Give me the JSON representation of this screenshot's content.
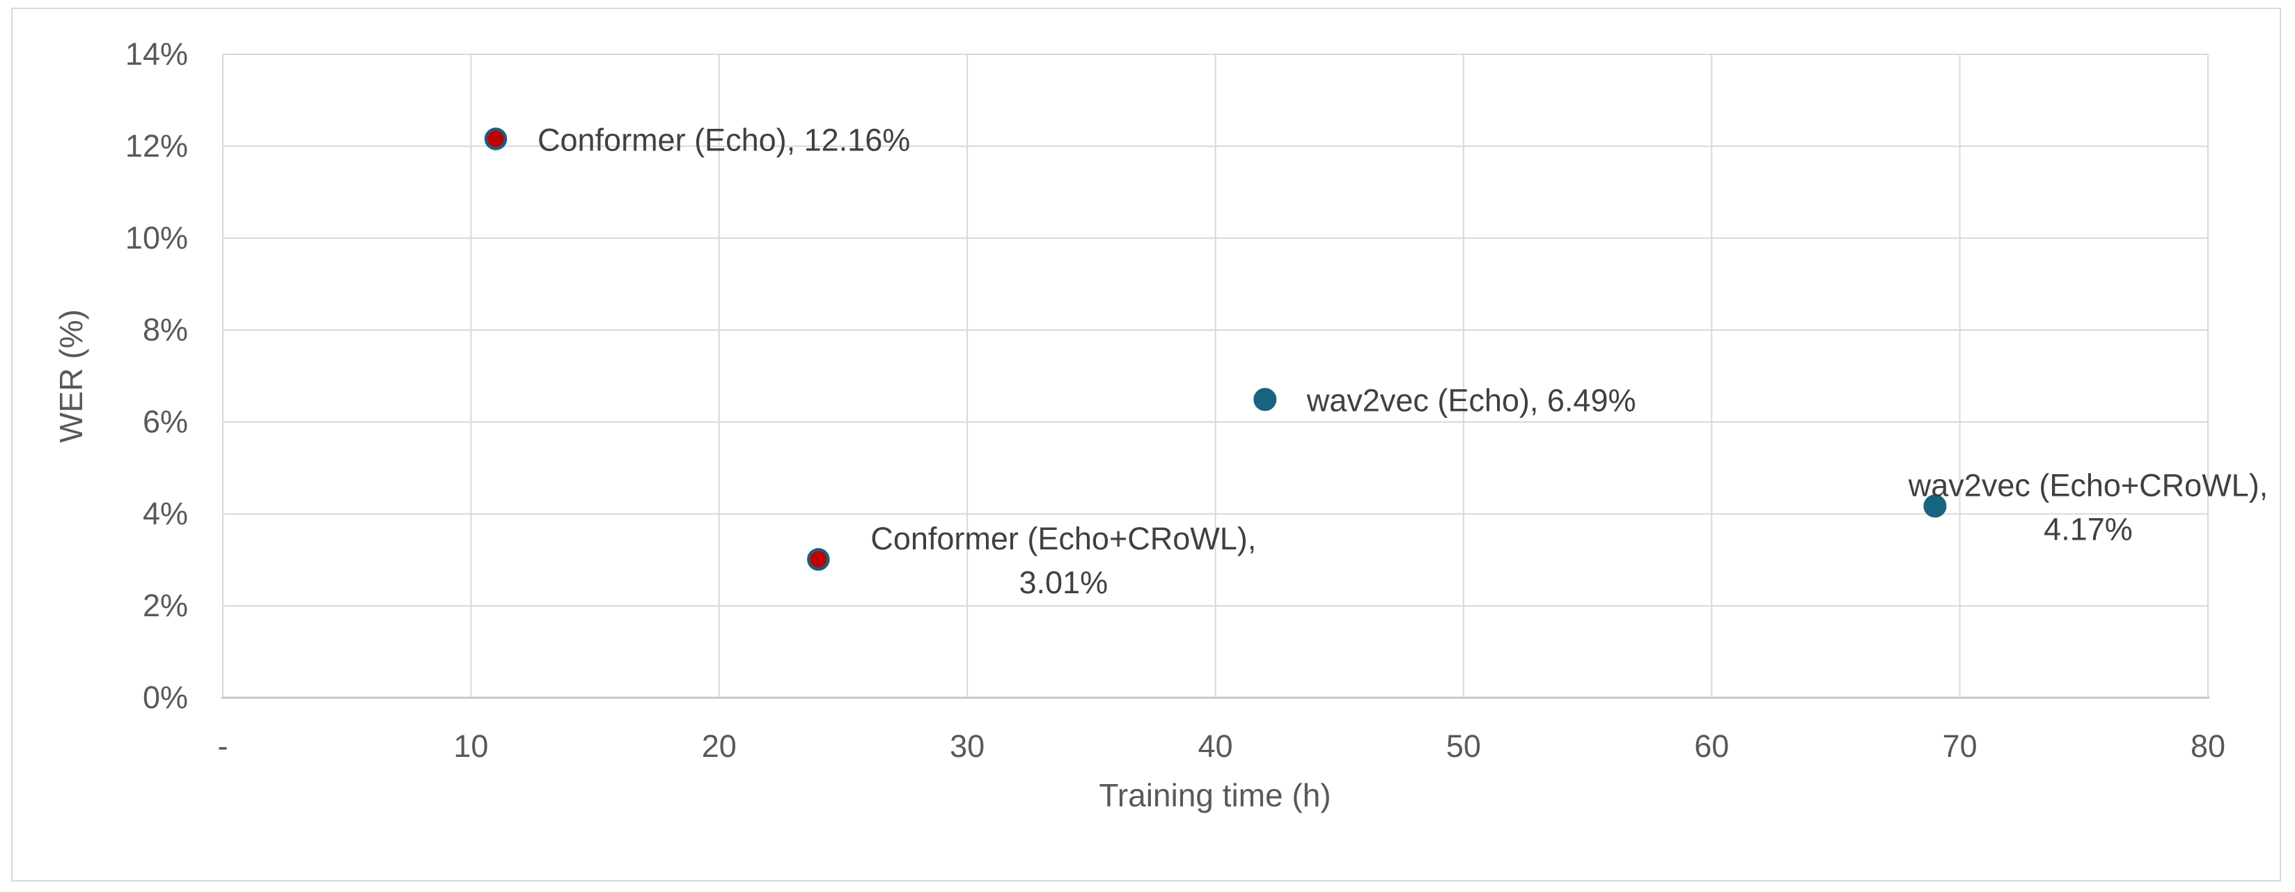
{
  "chart_data": {
    "type": "scatter",
    "title": "",
    "xlabel": "Training time (h)",
    "ylabel": "WER (%)",
    "xlim": [
      0,
      80
    ],
    "ylim": [
      0,
      14
    ],
    "grid": true,
    "legend": "none",
    "x_ticks": [
      {
        "value": 0,
        "label": "-"
      },
      {
        "value": 10,
        "label": "10"
      },
      {
        "value": 20,
        "label": "20"
      },
      {
        "value": 30,
        "label": "30"
      },
      {
        "value": 40,
        "label": "40"
      },
      {
        "value": 50,
        "label": "50"
      },
      {
        "value": 60,
        "label": "60"
      },
      {
        "value": 70,
        "label": "70"
      },
      {
        "value": 80,
        "label": "80"
      }
    ],
    "y_ticks": [
      {
        "value": 0,
        "label": "0%"
      },
      {
        "value": 2,
        "label": "2%"
      },
      {
        "value": 4,
        "label": "4%"
      },
      {
        "value": 6,
        "label": "6%"
      },
      {
        "value": 8,
        "label": "8%"
      },
      {
        "value": 10,
        "label": "10%"
      },
      {
        "value": 12,
        "label": "12%"
      },
      {
        "value": 14,
        "label": "14%"
      }
    ],
    "series": [
      {
        "name": "Conformer",
        "marker_fill": "#C00000",
        "marker_stroke": "#1B5E7D",
        "marker_radius": 14,
        "marker_stroke_width": 4.5,
        "points": [
          {
            "x": 11,
            "y": 12.16,
            "label_lines": [
              "Conformer (Echo), 12.16%"
            ],
            "label_align": "start",
            "label_dx": 60
          },
          {
            "x": 24,
            "y": 3.01,
            "label_lines": [
              "Conformer (Echo+CRoWL),",
              "3.01%"
            ],
            "label_align": "middle",
            "label_dx": 352
          }
        ]
      },
      {
        "name": "wav2vec",
        "marker_fill": "#176380",
        "marker_stroke": "#176380",
        "marker_radius": 16,
        "marker_stroke_width": 1,
        "points": [
          {
            "x": 42,
            "y": 6.49,
            "label_lines": [
              "wav2vec (Echo), 6.49%"
            ],
            "label_align": "start",
            "label_dx": 60
          },
          {
            "x": 69,
            "y": 4.17,
            "label_lines": [
              "wav2vec (Echo+CRoWL),",
              "4.17%"
            ],
            "label_align": "middle",
            "label_dx": 220
          }
        ]
      }
    ],
    "colors": {
      "gridline": "#D9D9D9",
      "axis_line": "#C6C6C6",
      "tick_text": "#595959",
      "axis_title_text": "#595959",
      "data_label_text": "#404040",
      "chart_border": "#D9D9D9",
      "background": "#FFFFFF"
    }
  }
}
